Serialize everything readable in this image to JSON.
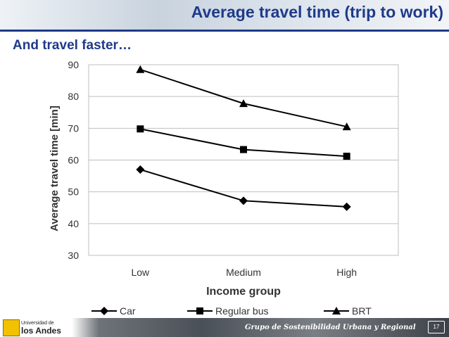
{
  "slide": {
    "title": "Average travel time (trip to work)",
    "subtitle": "And travel faster…",
    "page_number": "17"
  },
  "footer": {
    "university_line1": "Universidad de",
    "university_line2": "los Andes",
    "group_name": "Grupo de Sostenibilidad Urbana y Regional"
  },
  "colors": {
    "title": "#1f3a8a",
    "series": "#000000",
    "grid": "#bfbfbf"
  },
  "chart_data": {
    "type": "line",
    "title": "",
    "xlabel": "Income group",
    "ylabel": "Average travel time [min]",
    "categories": [
      "Low",
      "Medium",
      "High"
    ],
    "ylim": [
      30,
      90
    ],
    "yticks": [
      30,
      40,
      50,
      60,
      70,
      80,
      90
    ],
    "grid": true,
    "legend_position": "bottom",
    "series": [
      {
        "name": "Car",
        "marker": "diamond",
        "values": [
          57,
          47.2,
          45.3
        ]
      },
      {
        "name": "Regular bus",
        "marker": "square",
        "values": [
          69.8,
          63.3,
          61.2
        ]
      },
      {
        "name": "BRT",
        "marker": "triangle",
        "values": [
          88.5,
          77.8,
          70.5
        ]
      }
    ]
  }
}
